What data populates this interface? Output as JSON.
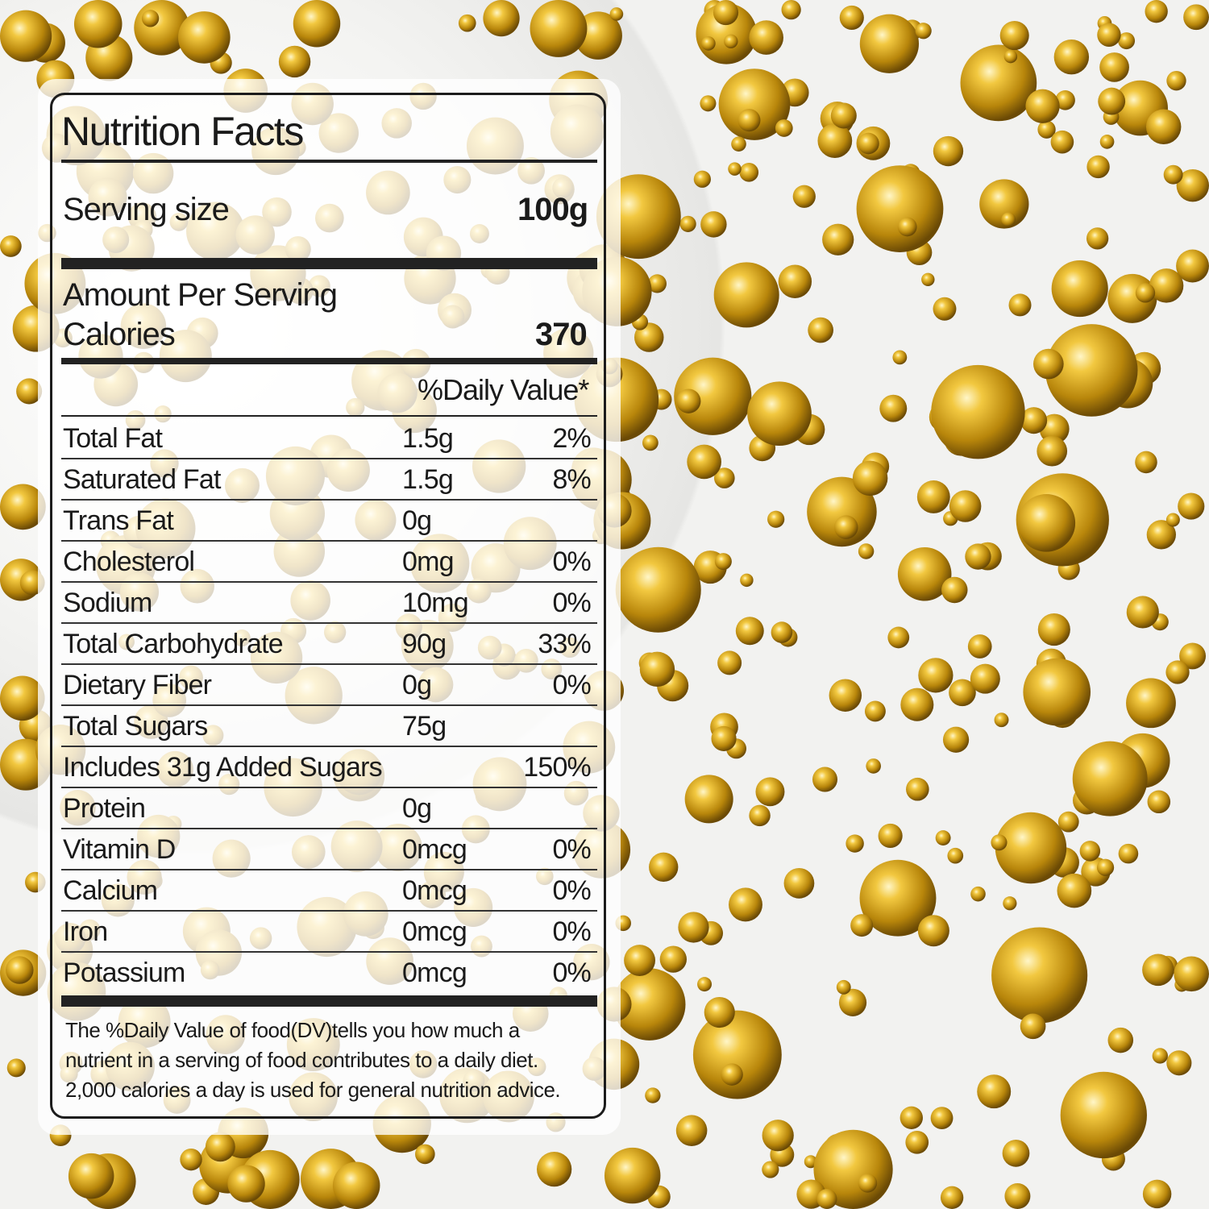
{
  "label": {
    "title": "Nutrition Facts",
    "serving_size_label": "Serving size",
    "serving_size_value": "100g",
    "amount_per_serving": "Amount Per Serving",
    "calories_label": "Calories",
    "calories_value": "370",
    "daily_value_header": "%Daily Value*",
    "rows": [
      {
        "name": "Total Fat",
        "amount": "1.5g",
        "dv": "2%"
      },
      {
        "name": "Saturated Fat",
        "amount": "1.5g",
        "dv": "8%"
      },
      {
        "name": "Trans Fat",
        "amount": "0g",
        "dv": ""
      },
      {
        "name": "Cholesterol",
        "amount": "0mg",
        "dv": "0%"
      },
      {
        "name": "Sodium",
        "amount": "10mg",
        "dv": "0%"
      },
      {
        "name": "Total Carbohydrate",
        "amount": "90g",
        "dv": "33%"
      },
      {
        "name": "Dietary Fiber",
        "amount": "0g",
        "dv": "0%"
      },
      {
        "name": "Total Sugars",
        "amount": "75g",
        "dv": ""
      },
      {
        "name": "Includes 31g Added Sugars",
        "amount": "",
        "dv": "150%"
      },
      {
        "name": "Protein",
        "amount": "0g",
        "dv": ""
      },
      {
        "name": "Vitamin D",
        "amount": "0mcg",
        "dv": "0%"
      },
      {
        "name": "Calcium",
        "amount": "0mcg",
        "dv": "0%"
      },
      {
        "name": "Iron",
        "amount": "0mcg",
        "dv": "0%"
      },
      {
        "name": "Potassium",
        "amount": "0mcg",
        "dv": "0%"
      }
    ],
    "footnote": [
      "The %Daily Value of food(DV)tells you how much a",
      "nutrient in a serving of food contributes to a daily diet.",
      "2,000 calories a day is used for general nutrition advice."
    ]
  },
  "colors": {
    "gold": "#d4a520",
    "ink": "#1a1a1a",
    "background": "#f2f2f0"
  }
}
